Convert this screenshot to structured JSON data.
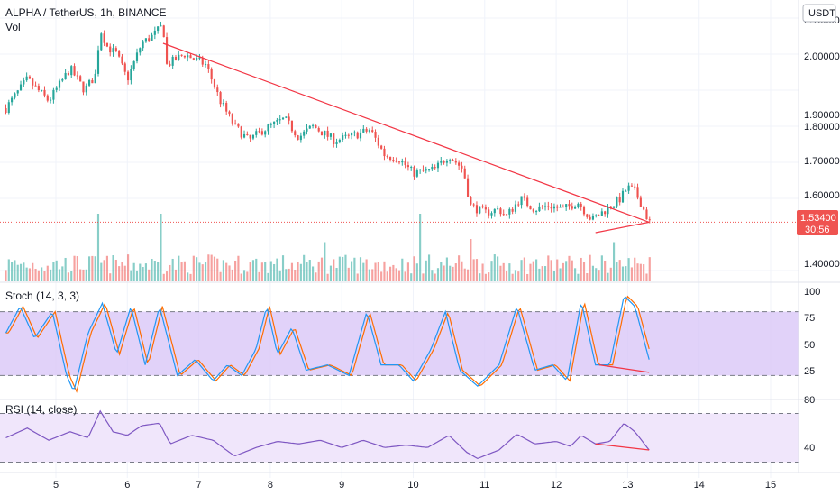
{
  "header": {
    "symbol_line": "ALPHA / TetherUS, 1h, BINANCE",
    "volume_label": "Vol",
    "currency_button": "USDT"
  },
  "price_axis": {
    "ticks": [
      "2.10000",
      "2.00000",
      "1.90000",
      "1.80000",
      "1.70000",
      "1.60000",
      "1.40000"
    ],
    "last_price_tag": "1.53400",
    "countdown_tag": "30:56"
  },
  "stoch": {
    "label": "Stoch (14, 3, 3)",
    "ticks": [
      "100",
      "75",
      "50",
      "25"
    ]
  },
  "rsi": {
    "label": "RSI (14, close)",
    "ticks": [
      "80",
      "40"
    ]
  },
  "time_axis": {
    "ticks": [
      "5",
      "6",
      "7",
      "8",
      "9",
      "10",
      "11",
      "12",
      "13",
      "14",
      "15"
    ]
  },
  "colors": {
    "up": "#26a69a",
    "down": "#ef5350",
    "trendline": "#f23645",
    "stoch_k": "#2196f3",
    "stoch_d": "#ff6d00",
    "stoch_band": "#d9c7f7",
    "rsi_line": "#7e57c2",
    "rsi_band": "#f0e6fb",
    "grid": "#f0f3fa",
    "price_tag": "#ef5350"
  },
  "chart_data": {
    "type": "candlestick",
    "ylim": [
      1.36,
      2.15
    ],
    "x_day_range": [
      4.3,
      15.4
    ],
    "last_price": 1.534,
    "anchors": [
      [
        4.3,
        1.85
      ],
      [
        4.6,
        1.93
      ],
      [
        4.9,
        1.87
      ],
      [
        5.2,
        1.96
      ],
      [
        5.4,
        1.9
      ],
      [
        5.55,
        1.94
      ],
      [
        5.62,
        2.07
      ],
      [
        5.72,
        2.02
      ],
      [
        5.85,
        2.0
      ],
      [
        6.0,
        1.93
      ],
      [
        6.2,
        2.03
      ],
      [
        6.35,
        2.05
      ],
      [
        6.5,
        2.08
      ],
      [
        6.55,
        1.97
      ],
      [
        6.8,
        2.0
      ],
      [
        7.1,
        1.97
      ],
      [
        7.3,
        1.87
      ],
      [
        7.5,
        1.8
      ],
      [
        7.7,
        1.76
      ],
      [
        7.9,
        1.79
      ],
      [
        8.2,
        1.82
      ],
      [
        8.4,
        1.77
      ],
      [
        8.6,
        1.8
      ],
      [
        8.9,
        1.76
      ],
      [
        9.1,
        1.77
      ],
      [
        9.4,
        1.79
      ],
      [
        9.6,
        1.72
      ],
      [
        9.8,
        1.71
      ],
      [
        10.0,
        1.67
      ],
      [
        10.3,
        1.68
      ],
      [
        10.5,
        1.72
      ],
      [
        10.7,
        1.68
      ],
      [
        10.8,
        1.58
      ],
      [
        11.0,
        1.56
      ],
      [
        11.2,
        1.57
      ],
      [
        11.3,
        1.55
      ],
      [
        11.5,
        1.6
      ],
      [
        11.7,
        1.57
      ],
      [
        11.9,
        1.58
      ],
      [
        12.1,
        1.57
      ],
      [
        12.3,
        1.59
      ],
      [
        12.5,
        1.54
      ],
      [
        12.7,
        1.57
      ],
      [
        12.9,
        1.6
      ],
      [
        13.0,
        1.63
      ],
      [
        13.1,
        1.62
      ],
      [
        13.2,
        1.58
      ],
      [
        13.3,
        1.534
      ]
    ],
    "volume_spikes": [
      [
        5.6,
        1.0
      ],
      [
        6.45,
        1.0
      ],
      [
        10.1,
        1.0
      ],
      [
        8.75,
        0.55
      ],
      [
        10.8,
        0.6
      ],
      [
        12.8,
        0.55
      ]
    ],
    "trendlines": [
      {
        "from": [
          6.5,
          2.03
        ],
        "to": [
          13.3,
          1.534
        ]
      },
      {
        "from": [
          12.55,
          1.505
        ],
        "to": [
          13.3,
          1.534
        ]
      }
    ],
    "stoch_ylim": [
      0,
      100
    ],
    "stoch_bands": [
      80,
      20
    ],
    "stoch_k_anchors": [
      [
        4.3,
        60
      ],
      [
        4.5,
        85
      ],
      [
        4.7,
        55
      ],
      [
        4.95,
        80
      ],
      [
        5.15,
        20
      ],
      [
        5.25,
        5
      ],
      [
        5.45,
        60
      ],
      [
        5.65,
        88
      ],
      [
        5.85,
        40
      ],
      [
        6.05,
        85
      ],
      [
        6.25,
        30
      ],
      [
        6.45,
        85
      ],
      [
        6.7,
        20
      ],
      [
        6.95,
        35
      ],
      [
        7.2,
        15
      ],
      [
        7.4,
        30
      ],
      [
        7.6,
        20
      ],
      [
        7.8,
        45
      ],
      [
        7.95,
        85
      ],
      [
        8.1,
        40
      ],
      [
        8.3,
        65
      ],
      [
        8.5,
        25
      ],
      [
        8.8,
        30
      ],
      [
        9.1,
        20
      ],
      [
        9.35,
        80
      ],
      [
        9.55,
        30
      ],
      [
        9.8,
        30
      ],
      [
        10.0,
        15
      ],
      [
        10.25,
        45
      ],
      [
        10.45,
        80
      ],
      [
        10.65,
        25
      ],
      [
        10.9,
        10
      ],
      [
        11.2,
        30
      ],
      [
        11.45,
        85
      ],
      [
        11.7,
        25
      ],
      [
        11.95,
        30
      ],
      [
        12.15,
        15
      ],
      [
        12.35,
        90
      ],
      [
        12.55,
        30
      ],
      [
        12.75,
        30
      ],
      [
        12.95,
        95
      ],
      [
        13.1,
        85
      ],
      [
        13.3,
        35
      ]
    ],
    "stoch_trendline": {
      "from": [
        12.6,
        30
      ],
      "to": [
        13.3,
        23
      ]
    },
    "rsi_ylim": [
      25,
      85
    ],
    "rsi_bands": [
      70,
      30
    ],
    "rsi_anchors": [
      [
        4.3,
        50
      ],
      [
        4.6,
        58
      ],
      [
        4.9,
        48
      ],
      [
        5.2,
        55
      ],
      [
        5.45,
        50
      ],
      [
        5.62,
        72
      ],
      [
        5.8,
        55
      ],
      [
        6.0,
        52
      ],
      [
        6.2,
        60
      ],
      [
        6.45,
        62
      ],
      [
        6.6,
        45
      ],
      [
        6.9,
        52
      ],
      [
        7.2,
        48
      ],
      [
        7.5,
        35
      ],
      [
        7.8,
        42
      ],
      [
        8.1,
        47
      ],
      [
        8.4,
        45
      ],
      [
        8.7,
        48
      ],
      [
        9.0,
        42
      ],
      [
        9.3,
        48
      ],
      [
        9.6,
        42
      ],
      [
        9.9,
        44
      ],
      [
        10.2,
        42
      ],
      [
        10.5,
        52
      ],
      [
        10.75,
        38
      ],
      [
        10.9,
        33
      ],
      [
        11.2,
        40
      ],
      [
        11.45,
        53
      ],
      [
        11.7,
        45
      ],
      [
        12.0,
        47
      ],
      [
        12.2,
        43
      ],
      [
        12.35,
        52
      ],
      [
        12.55,
        45
      ],
      [
        12.75,
        47
      ],
      [
        12.95,
        62
      ],
      [
        13.1,
        55
      ],
      [
        13.3,
        40
      ]
    ],
    "rsi_trendline": {
      "from": [
        12.55,
        45
      ],
      "to": [
        13.3,
        40
      ]
    }
  }
}
